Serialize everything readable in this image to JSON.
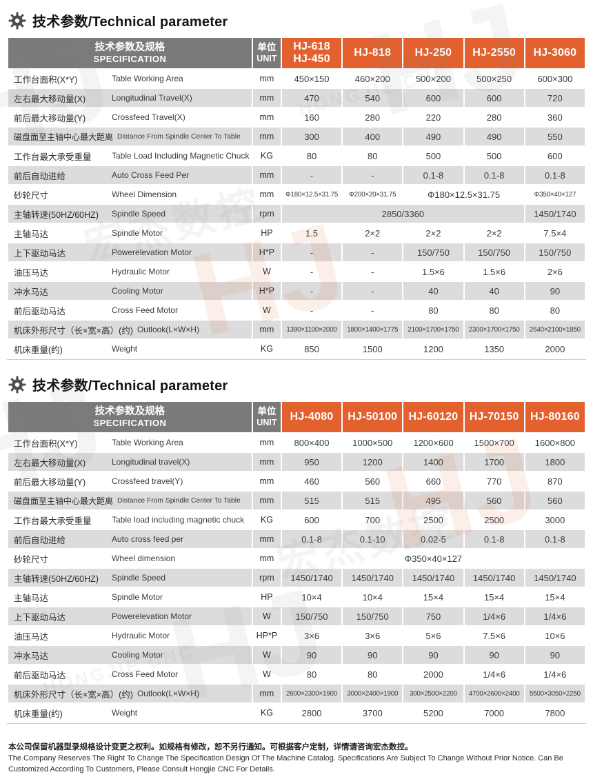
{
  "page": {
    "section_title": "技术参数/Technical parameter",
    "footer": {
      "line_cn": "本公司保留机器型录规格设计变更之权利。如规格有修改，恕不另行通知。可根据客户定制，详情请咨询宏杰数控。",
      "line_en": "The Company Reserves The Right To Change The Specification Design Of The Machine Catalog. Specifications Are Subject To Change Without Prior Notice. Can Be Customized According To Customers, Please Consult Hongjie CNC For Details."
    },
    "watermark": {
      "logo": "HJ",
      "text_cn": "宏杰数控",
      "text_en": "HONGJIE CNC"
    }
  },
  "colors": {
    "accent_orange": "#e2612e",
    "header_gray": "#7a7a7a",
    "row_stripe_gray": "#dcdcdc"
  },
  "tables": [
    {
      "spec_header": {
        "cn": "技术参数及规格",
        "en": "SPECIFICATION"
      },
      "unit_header": {
        "cn": "单位",
        "en": "UNIT"
      },
      "models": [
        "HJ-618\nHJ-450",
        "HJ-818",
        "HJ-250",
        "HJ-2550",
        "HJ-3060"
      ],
      "rows": [
        {
          "cn": "工作台面积(X*Y)",
          "en": "Table Working Area",
          "unit": "mm",
          "values": [
            "450×150",
            "460×200",
            "500×200",
            "500×250",
            "600×300"
          ]
        },
        {
          "cn": "左右最大移动量(X)",
          "en": "Longitudinal Travel(X)",
          "unit": "mm",
          "values": [
            "470",
            "540",
            "600",
            "600",
            "720"
          ]
        },
        {
          "cn": "前后最大移动量(Y)",
          "en": "Crossfeed Travel(X)",
          "unit": "mm",
          "values": [
            "160",
            "280",
            "220",
            "280",
            "360"
          ]
        },
        {
          "cn": "磁盘面至主轴中心最大距离",
          "en": "Distance From Spindle Center To Table",
          "unit": "mm",
          "values": [
            "300",
            "400",
            "490",
            "490",
            "550"
          ]
        },
        {
          "cn": "工作台最大承受重量",
          "en": "Table Load Including Magnetic Chuck",
          "unit": "KG",
          "values": [
            "80",
            "80",
            "500",
            "500",
            "600"
          ]
        },
        {
          "cn": "前后自动进给",
          "en": "Auto Cross Feed Per",
          "unit": "mm",
          "values": [
            "-",
            "-",
            "0.1-8",
            "0.1-8",
            "0.1-8"
          ]
        },
        {
          "cn": "砂轮尺寸",
          "en": "Wheel Dimension",
          "unit": "mm",
          "values": [
            "Φ180×12.5×31.75",
            "Φ200×20×31.75",
            {
              "text": "Φ180×12.5×31.75",
              "span": 2
            },
            {
              "text": "Φ350×40×127",
              "span": 1,
              "small": true
            }
          ]
        },
        {
          "cn": "主轴转速(50HZ/60HZ)",
          "en": "Spindle Speed",
          "unit": "rpm",
          "values": [
            {
              "text": "2850/3360",
              "span": 4
            },
            "1450/1740"
          ]
        },
        {
          "cn": "主轴马达",
          "en": "Spindle Motor",
          "unit": "HP",
          "values": [
            "1.5",
            "2×2",
            "2×2",
            "2×2",
            "7.5×4"
          ]
        },
        {
          "cn": "上下驱动马达",
          "en": "Powerelevation Motor",
          "unit": "H*P",
          "values": [
            "-",
            "-",
            "150/750",
            "150/750",
            "150/750"
          ]
        },
        {
          "cn": "油压马达",
          "en": "Hydraulic Motor",
          "unit": "W",
          "values": [
            "-",
            "-",
            "1.5×6",
            "1.5×6",
            "2×6"
          ]
        },
        {
          "cn": "冲水马达",
          "en": "Cooling Motor",
          "unit": "H*P",
          "values": [
            "-",
            "-",
            "40",
            "40",
            "90"
          ]
        },
        {
          "cn": "前后驱动马达",
          "en": "Cross Feed Motor",
          "unit": "W",
          "values": [
            "-",
            "-",
            "80",
            "80",
            "80"
          ]
        },
        {
          "cn": "机床外形尺寸（长×宽×高）(约)",
          "en": "Outlook(L×W×H)",
          "unit": "mm",
          "values": [
            "1390×1100×2000",
            "1800×1400×1775",
            "2100×1700×1750",
            "2300×1700×1750",
            "2640×2100×1850"
          ]
        },
        {
          "cn": "机床重量(约)",
          "en": "Weight",
          "unit": "KG",
          "values": [
            "850",
            "1500",
            "1200",
            "1350",
            "2000"
          ]
        }
      ]
    },
    {
      "spec_header": {
        "cn": "技术参数及规格",
        "en": "SPECIFICATION"
      },
      "unit_header": {
        "cn": "单位",
        "en": "UNIT"
      },
      "models": [
        "HJ-4080",
        "HJ-50100",
        "HJ-60120",
        "HJ-70150",
        "HJ-80160"
      ],
      "rows": [
        {
          "cn": "工作台面积(X*Y)",
          "en": "Table Working Area",
          "unit": "mm",
          "values": [
            "800×400",
            "1000×500",
            "1200×600",
            "1500×700",
            "1600×800"
          ]
        },
        {
          "cn": "左右最大移动量(X)",
          "en": "Longitudinal travel(X)",
          "unit": "mm",
          "values": [
            "950",
            "1200",
            "1400",
            "1700",
            "1800"
          ]
        },
        {
          "cn": "前后最大移动量(Y)",
          "en": "Crossfeed travel(Y)",
          "unit": "mm",
          "values": [
            "460",
            "560",
            "660",
            "770",
            "870"
          ]
        },
        {
          "cn": "磁盘面至主轴中心最大距离",
          "en": "Distance From Spindle Center To Table",
          "unit": "mm",
          "values": [
            "515",
            "515",
            "495",
            "560",
            "560"
          ]
        },
        {
          "cn": "工作台最大承受重量",
          "en": "Table load including magnetic chuck",
          "unit": "KG",
          "values": [
            "600",
            "700",
            "2500",
            "2500",
            "3000"
          ]
        },
        {
          "cn": "前后自动进给",
          "en": "Auto cross feed per",
          "unit": "mm",
          "values": [
            "0.1-8",
            "0.1-10",
            "0.02-5",
            "0.1-8",
            "0.1-8"
          ]
        },
        {
          "cn": "砂轮尺寸",
          "en": "Wheel dimension",
          "unit": "mm",
          "values": [
            {
              "text": "Φ350×40×127",
              "span": 5
            }
          ]
        },
        {
          "cn": "主轴转速(50HZ/60HZ)",
          "en": "Spindle Speed",
          "unit": "rpm",
          "values": [
            "1450/1740",
            "1450/1740",
            "1450/1740",
            "1450/1740",
            "1450/1740"
          ]
        },
        {
          "cn": "主轴马达",
          "en": "Spindle Motor",
          "unit": "HP",
          "values": [
            "10×4",
            "10×4",
            "15×4",
            "15×4",
            "15×4"
          ]
        },
        {
          "cn": "上下驱动马达",
          "en": "Powerelevation Motor",
          "unit": "W",
          "values": [
            "150/750",
            "150/750",
            "750",
            "1/4×6",
            "1/4×6"
          ]
        },
        {
          "cn": "油压马达",
          "en": "Hydraulic Motor",
          "unit": "HP*P",
          "values": [
            "3×6",
            "3×6",
            "5×6",
            "7.5×6",
            "10×6"
          ]
        },
        {
          "cn": "冲水马达",
          "en": "Cooling Motor",
          "unit": "W",
          "values": [
            "90",
            "90",
            "90",
            "90",
            "90"
          ]
        },
        {
          "cn": "前后驱动马达",
          "en": "Cross Feed Motor",
          "unit": "W",
          "values": [
            "80",
            "80",
            "2000",
            "1/4×6",
            "1/4×6"
          ]
        },
        {
          "cn": "机床外形尺寸（长×宽×高）(约)",
          "en": "Outlook(L×W×H)",
          "unit": "mm",
          "values": [
            "2600×2300×1900",
            "3000×2400×1900",
            "300×2500×2200",
            "4700×2600×2400",
            "5500×3050×2250"
          ]
        },
        {
          "cn": "机床重量(约)",
          "en": "Weight",
          "unit": "KG",
          "values": [
            "2800",
            "3700",
            "5200",
            "7000",
            "7800"
          ]
        }
      ]
    }
  ]
}
